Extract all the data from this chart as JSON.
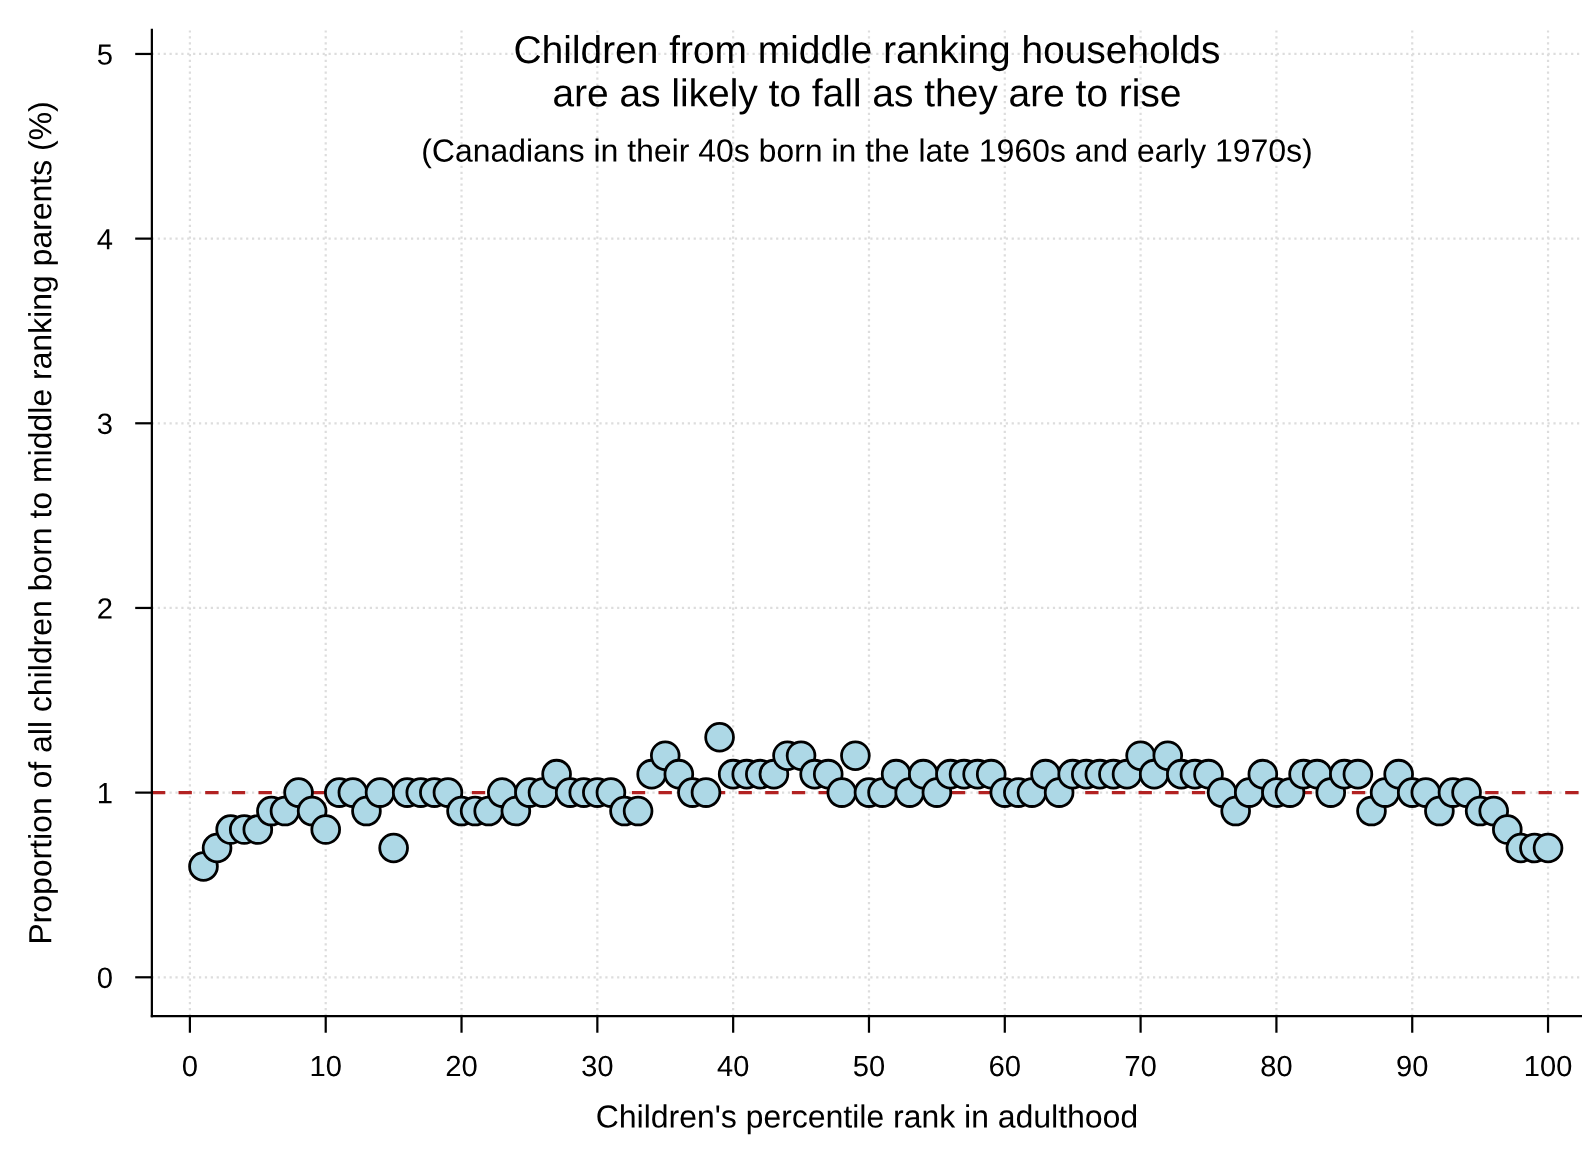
{
  "chart_data": {
    "type": "scatter",
    "title": "Children from middle ranking households\nare as likely to fall as they are to rise",
    "subtitle": "(Canadians in their 40s born in the late 1960s and early 1970s)",
    "xlabel": "Children's percentile rank in adulthood",
    "ylabel": "Proportion of all children born to middle ranking parents (%)",
    "x": [
      1,
      2,
      3,
      4,
      5,
      6,
      7,
      8,
      9,
      10,
      11,
      12,
      13,
      14,
      15,
      16,
      17,
      18,
      19,
      20,
      21,
      22,
      23,
      24,
      25,
      26,
      27,
      28,
      29,
      30,
      31,
      32,
      33,
      34,
      35,
      36,
      37,
      38,
      39,
      40,
      41,
      42,
      43,
      44,
      45,
      46,
      47,
      48,
      49,
      50,
      51,
      52,
      53,
      54,
      55,
      56,
      57,
      58,
      59,
      60,
      61,
      62,
      63,
      64,
      65,
      66,
      67,
      68,
      69,
      70,
      71,
      72,
      73,
      74,
      75,
      76,
      77,
      78,
      79,
      80,
      81,
      82,
      83,
      84,
      85,
      86,
      87,
      88,
      89,
      90,
      91,
      92,
      93,
      94,
      95,
      96,
      97,
      98,
      99,
      100
    ],
    "series": [
      {
        "color": "#add8e6",
        "values": [
          0.6,
          0.7,
          0.8,
          0.8,
          0.8,
          0.9,
          0.9,
          1.0,
          0.9,
          0.8,
          1.0,
          1.0,
          0.9,
          1.0,
          0.7,
          1.0,
          1.0,
          1.0,
          1.0,
          0.9,
          0.9,
          0.9,
          1.0,
          0.9,
          1.0,
          1.0,
          1.1,
          1.0,
          1.0,
          1.0,
          1.0,
          0.9,
          0.9,
          1.1,
          1.2,
          1.1,
          1.0,
          1.0,
          1.3,
          1.1,
          1.1,
          1.1,
          1.1,
          1.2,
          1.2,
          1.1,
          1.1,
          1.0,
          1.2,
          1.0,
          1.0,
          1.1,
          1.0,
          1.1,
          1.0,
          1.1,
          1.1,
          1.1,
          1.1,
          1.0,
          1.0,
          1.0,
          1.1,
          1.0,
          1.1,
          1.1,
          1.1,
          1.1,
          1.1,
          1.2,
          1.1,
          1.2,
          1.1,
          1.1,
          1.1,
          1.0,
          0.9,
          1.0,
          1.1,
          1.0,
          1.0,
          1.1,
          1.1,
          1.0,
          1.1,
          1.1,
          0.9,
          1.0,
          1.1,
          1.0,
          1.0,
          0.9,
          1.0,
          1.0,
          0.9,
          0.9,
          0.8,
          0.7,
          0.7,
          0.7
        ]
      }
    ],
    "xlim": [
      -2.8,
      102.5
    ],
    "xticks": [
      0,
      10,
      20,
      30,
      40,
      50,
      60,
      70,
      80,
      90,
      100
    ],
    "ylim": [
      -0.21,
      5.13
    ],
    "yticks": [
      0,
      1,
      2,
      3,
      4,
      5
    ],
    "ref_lines": [
      {
        "axis": "y",
        "value": 1,
        "color": "#b22222",
        "line_style": "dashed"
      }
    ],
    "grid": true,
    "legend": false,
    "marker": "circle"
  }
}
